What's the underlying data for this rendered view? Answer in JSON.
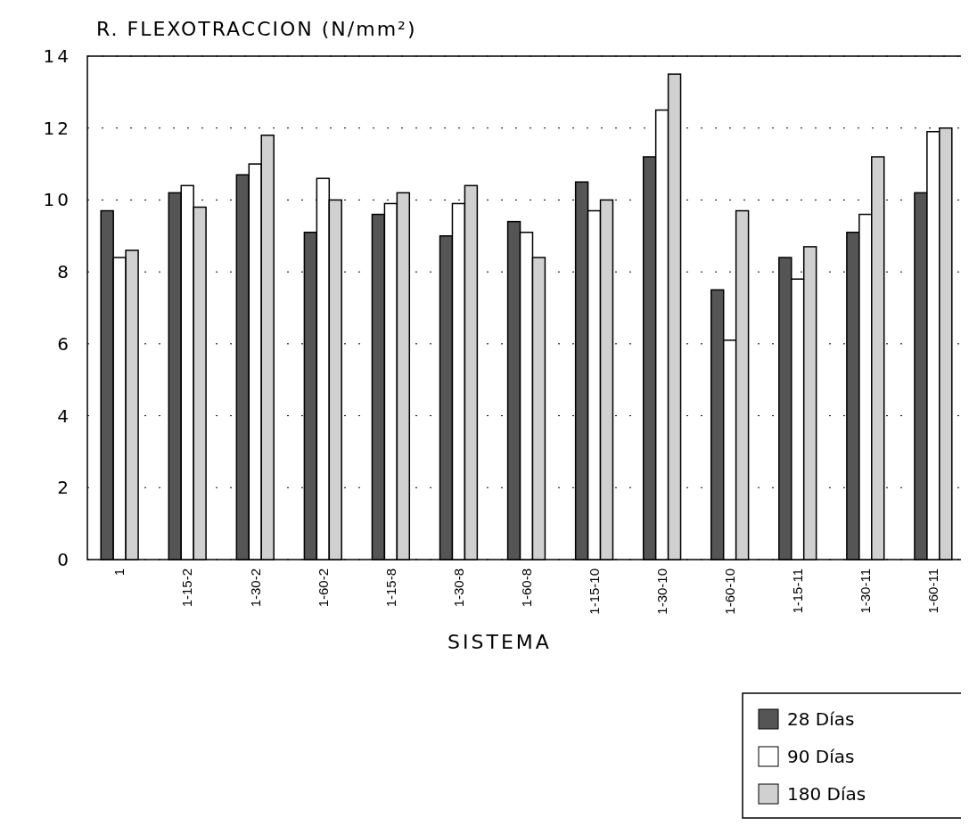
{
  "chart_data": {
    "type": "bar",
    "title": "R. FLEXOTRACCION (N/mm²)",
    "xlabel": "SISTEMA",
    "categories": [
      "1",
      "1-15-2",
      "1-30-2",
      "1-60-2",
      "1-15-8",
      "1-30-8",
      "1-60-8",
      "1-15-10",
      "1-30-10",
      "1-60-10",
      "1-15-11",
      "1-30-11",
      "1-60-11"
    ],
    "series": [
      {
        "name": "28 Días",
        "color": "#555555",
        "values": [
          9.7,
          10.2,
          10.7,
          9.1,
          9.6,
          9.0,
          9.4,
          10.5,
          11.2,
          7.5,
          8.4,
          9.1,
          10.2
        ]
      },
      {
        "name": "90 Días",
        "color": "#ffffff",
        "values": [
          8.4,
          10.4,
          11.0,
          10.6,
          9.9,
          9.9,
          9.1,
          9.7,
          12.5,
          6.1,
          7.8,
          9.6,
          11.9
        ]
      },
      {
        "name": "180 Días",
        "color": "#d0d0d0",
        "values": [
          8.6,
          9.8,
          11.8,
          10.0,
          10.2,
          10.4,
          8.4,
          10.0,
          13.5,
          9.7,
          8.7,
          11.2,
          12.0
        ]
      }
    ],
    "ylim": [
      0,
      14
    ],
    "yticks": [
      0,
      2,
      4,
      6,
      8,
      10,
      12,
      14
    ],
    "grid": "y",
    "legend": "bottom right"
  }
}
